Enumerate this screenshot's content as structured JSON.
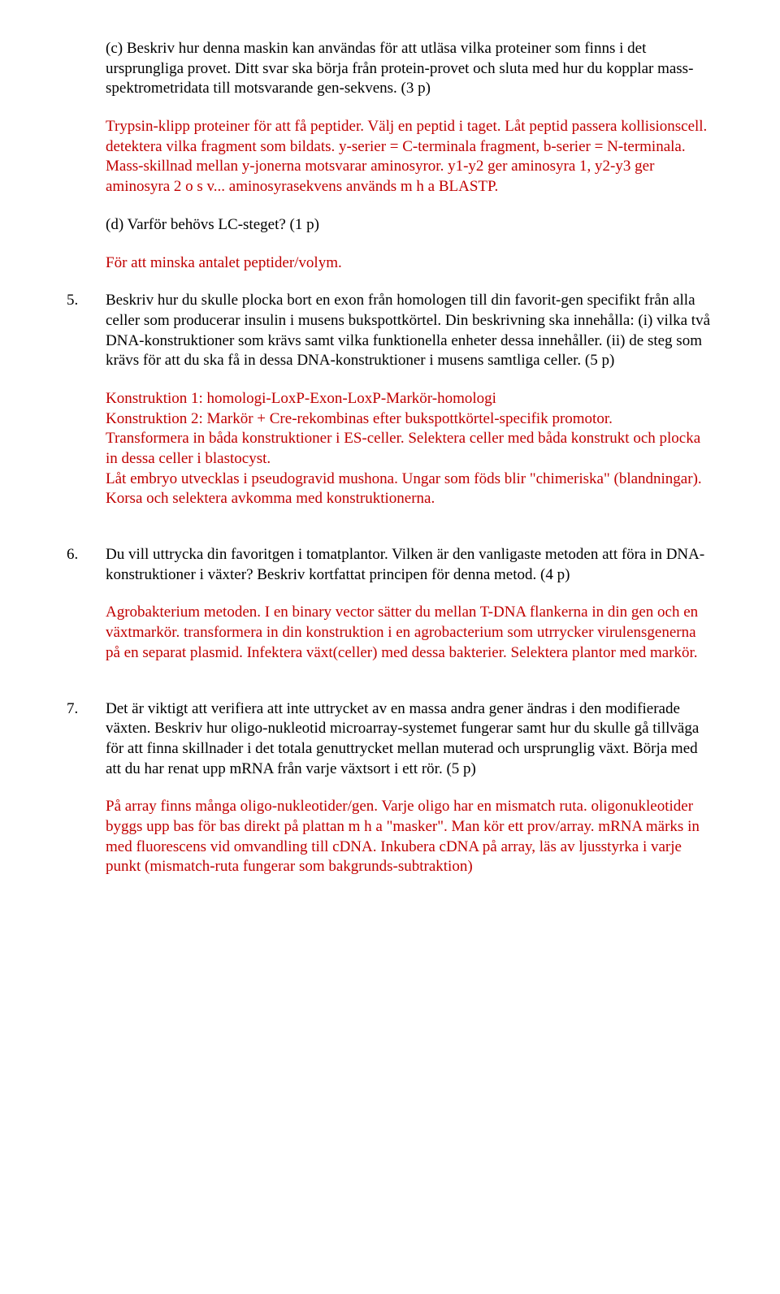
{
  "text_color_answer": "#c00000",
  "text_color_question": "#000000",
  "font_family": "Times New Roman",
  "font_size_pt": 14,
  "sub_c": {
    "question": "(c) Beskriv hur denna maskin kan användas för att utläsa vilka proteiner som finns i det ursprungliga provet. Ditt svar ska börja från protein-provet och sluta med hur du kopplar mass-spektrometridata till motsvarande gen-sekvens. (3 p)",
    "answer": "Trypsin-klipp proteiner för att få peptider. Välj en peptid i taget. Låt peptid passera kollisionscell. detektera vilka fragment som bildats. y-serier = C-terminala fragment, b-serier = N-terminala. Mass-skillnad mellan y-jonerna motsvarar aminosyror. y1-y2 ger aminosyra 1, y2-y3 ger aminosyra 2 o s v... aminosyrasekvens används m h a BLASTP."
  },
  "sub_d": {
    "question": "(d) Varför behövs LC-steget? (1 p)",
    "answer": "För att minska antalet peptider/volym."
  },
  "q5": {
    "number": "5.",
    "question": "Beskriv hur du skulle plocka bort en exon från homologen till din favorit-gen specifikt från alla celler som producerar insulin i musens bukspottkörtel. Din beskrivning ska innehålla: (i) vilka två DNA-konstruktioner som krävs samt vilka funktionella enheter dessa innehåller. (ii) de steg som krävs för att du ska få in dessa DNA-konstruktioner i musens samtliga celler. (5 p)",
    "answer_p1": "Konstruktion 1: homologi-LoxP-Exon-LoxP-Markör-homologi",
    "answer_p2": "Konstruktion 2: Markör + Cre-rekombinas efter bukspottkörtel-specifik promotor.",
    "answer_p3": "Transformera in båda konstruktioner i ES-celler. Selektera celler med båda konstrukt och plocka in dessa celler i blastocyst.",
    "answer_p4": "Låt embryo utvecklas i pseudogravid mushona. Ungar som föds blir \"chimeriska\" (blandningar). Korsa och selektera avkomma med konstruktionerna."
  },
  "q6": {
    "number": "6.",
    "question": "Du vill uttrycka din favoritgen i tomatplantor. Vilken är den vanligaste metoden att föra in DNA-konstruktioner i växter? Beskriv kortfattat principen för denna metod. (4 p)",
    "answer": "Agrobakterium metoden. I en binary vector sätter du mellan T-DNA flankerna in din gen och en växtmarkör. transformera in din konstruktion i en agrobacterium som utrrycker virulensgenerna på en separat plasmid. Infektera växt(celler) med dessa bakterier. Selektera plantor med markör."
  },
  "q7": {
    "number": "7.",
    "question": "Det är viktigt att verifiera att inte uttrycket av en massa andra gener ändras i den modifierade växten. Beskriv hur oligo-nukleotid microarray-systemet fungerar samt hur du skulle gå tillväga för att finna skillnader i det totala genuttrycket mellan muterad och ursprunglig växt. Börja med att du har renat upp mRNA från varje växtsort i ett rör. (5 p)",
    "answer": "På array finns många oligo-nukleotider/gen. Varje oligo har en mismatch ruta. oligonukleotider byggs upp bas för bas direkt på plattan m h a \"masker\". Man kör ett prov/array. mRNA märks in med fluorescens vid omvandling till cDNA. Inkubera cDNA på array, läs av ljusstyrka i varje punkt (mismatch-ruta fungerar som bakgrunds-subtraktion)"
  }
}
